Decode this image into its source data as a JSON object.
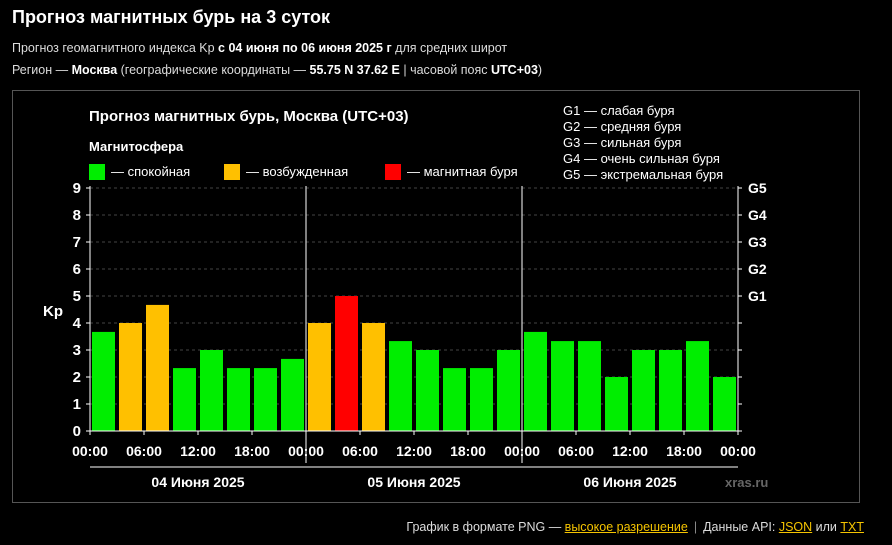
{
  "header": {
    "title": "Прогноз магнитных бурь на 3 суток",
    "sub1_prefix": "Прогноз геомагнитного индекса Kp ",
    "sub1_range": "с 04 июня по 06 июня 2025 г",
    "sub1_suffix": " для средних широт",
    "sub2_prefix": "Регион — ",
    "sub2_city": "Москва",
    "sub2_mid": " (географические координаты — ",
    "sub2_coords": "55.75 N 37.62 E",
    "sub2_tz_prefix": " | часовой пояс ",
    "sub2_tz": "UTC+03",
    "sub2_end": ")"
  },
  "chart_data": {
    "type": "bar",
    "title": "Прогноз магнитных бурь, Москва (UTC+03)",
    "legend_title": "Магнитосфера",
    "legend": [
      {
        "label": "— спокойная",
        "color": "#00ee00"
      },
      {
        "label": "— возбужденная",
        "color": "#ffc000"
      },
      {
        "label": "— магнитная буря",
        "color": "#ff0000"
      }
    ],
    "storm_scale": [
      "G1 — слабая буря",
      "G2 — средняя буря",
      "G3 — сильная буря",
      "G4 — очень сильная буря",
      "G5 — экстремальная буря"
    ],
    "ylabel": "Kp",
    "ylim": [
      0,
      9
    ],
    "y_ticks": [
      "0",
      "1",
      "2",
      "3",
      "4",
      "5",
      "6",
      "7",
      "8",
      "9"
    ],
    "right_ticks": [
      {
        "label": "G1",
        "value": 5
      },
      {
        "label": "G2",
        "value": 6
      },
      {
        "label": "G3",
        "value": 7
      },
      {
        "label": "G4",
        "value": 8
      },
      {
        "label": "G5",
        "value": 9
      }
    ],
    "x_time_labels": [
      "00:00",
      "06:00",
      "12:00",
      "18:00",
      "00:00",
      "06:00",
      "12:00",
      "18:00",
      "00:00",
      "06:00",
      "12:00",
      "18:00",
      "00:00"
    ],
    "days": [
      "04 Июня 2025",
      "05 Июня 2025",
      "06 Июня 2025"
    ],
    "values": [
      3.67,
      4.0,
      4.67,
      2.33,
      3.0,
      2.33,
      2.33,
      2.67,
      4.0,
      5.0,
      4.0,
      3.33,
      3.0,
      2.33,
      2.33,
      3.0,
      3.67,
      3.33,
      3.33,
      2.0,
      3.0,
      3.0,
      3.33,
      2.0
    ],
    "colors": [
      "#00ee00",
      "#ffc000",
      "#ffc000",
      "#00ee00",
      "#00ee00",
      "#00ee00",
      "#00ee00",
      "#00ee00",
      "#ffc000",
      "#ff0000",
      "#ffc000",
      "#00ee00",
      "#00ee00",
      "#00ee00",
      "#00ee00",
      "#00ee00",
      "#00ee00",
      "#00ee00",
      "#00ee00",
      "#00ee00",
      "#00ee00",
      "#00ee00",
      "#00ee00",
      "#00ee00"
    ],
    "grid": true,
    "watermark": "xras.ru"
  },
  "footer": {
    "png_text": "График в формате PNG — ",
    "png_link": "высокое разрешение",
    "sep": "|",
    "api_text": "Данные API: ",
    "json_link": "JSON",
    "or_text": " или ",
    "txt_link": "TXT"
  }
}
